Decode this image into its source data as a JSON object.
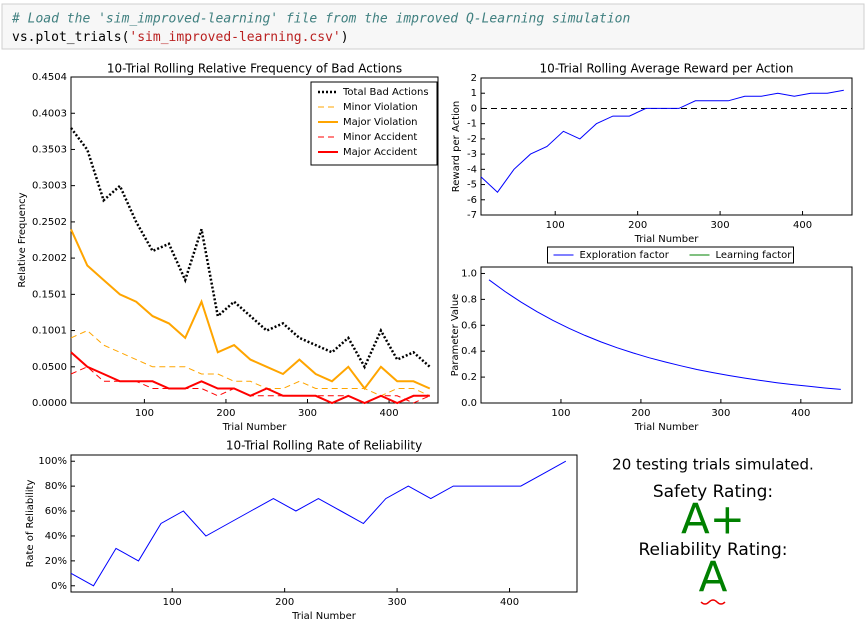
{
  "code": {
    "comment": "# Load the 'sim_improved-learning' file from the improved Q-Learning simulation",
    "tokens": [
      "vs.plot_trials(",
      "'sim_improved-learning.csv'",
      ")"
    ]
  },
  "chart_data": [
    {
      "type": "line",
      "title": "10-Trial Rolling Relative Frequency of Bad Actions",
      "x_label": "Trial Number",
      "y_label": "Relative Frequency",
      "x": [
        10,
        30,
        50,
        70,
        90,
        110,
        130,
        150,
        170,
        190,
        210,
        230,
        250,
        270,
        290,
        310,
        330,
        350,
        370,
        390,
        410,
        430,
        450
      ],
      "series": [
        {
          "name": "Total Bad Actions",
          "color": "#000000",
          "style": "dotted",
          "values": [
            0.38,
            0.35,
            0.28,
            0.3,
            0.25,
            0.21,
            0.22,
            0.17,
            0.24,
            0.12,
            0.14,
            0.12,
            0.1,
            0.11,
            0.09,
            0.08,
            0.07,
            0.09,
            0.05,
            0.1,
            0.06,
            0.07,
            0.05
          ]
        },
        {
          "name": "Minor Violation",
          "color": "#ffa500",
          "style": "dashed",
          "values": [
            0.09,
            0.1,
            0.08,
            0.07,
            0.06,
            0.05,
            0.05,
            0.05,
            0.04,
            0.04,
            0.03,
            0.03,
            0.02,
            0.02,
            0.03,
            0.02,
            0.02,
            0.02,
            0.02,
            0.01,
            0.02,
            0.02,
            0.01
          ]
        },
        {
          "name": "Major Violation",
          "color": "#ffa500",
          "style": "solid",
          "values": [
            0.24,
            0.19,
            0.17,
            0.15,
            0.14,
            0.12,
            0.11,
            0.09,
            0.14,
            0.07,
            0.08,
            0.06,
            0.05,
            0.04,
            0.06,
            0.04,
            0.03,
            0.05,
            0.02,
            0.05,
            0.03,
            0.03,
            0.02
          ]
        },
        {
          "name": "Minor Accident",
          "color": "#ff0000",
          "style": "dashed",
          "values": [
            0.04,
            0.05,
            0.03,
            0.03,
            0.03,
            0.02,
            0.02,
            0.02,
            0.02,
            0.01,
            0.02,
            0.01,
            0.01,
            0.01,
            0.01,
            0.01,
            0.01,
            0.01,
            0.0,
            0.01,
            0.01,
            0.0,
            0.01
          ]
        },
        {
          "name": "Major Accident",
          "color": "#ff0000",
          "style": "solid",
          "values": [
            0.07,
            0.05,
            0.04,
            0.03,
            0.03,
            0.03,
            0.02,
            0.02,
            0.03,
            0.02,
            0.02,
            0.01,
            0.02,
            0.01,
            0.01,
            0.01,
            0.0,
            0.01,
            0.0,
            0.01,
            0.0,
            0.01,
            0.01
          ]
        }
      ],
      "xlim": [
        10,
        460
      ],
      "xticks": [
        100,
        200,
        300,
        400
      ],
      "ylim": [
        0,
        0.4504
      ],
      "yticks": [
        {
          "value": 0,
          "label": "0.0000"
        },
        {
          "value": 0.05,
          "label": "0.0500"
        },
        {
          "value": 0.1001,
          "label": "0.1001"
        },
        {
          "value": 0.1501,
          "label": "0.1501"
        },
        {
          "value": 0.2002,
          "label": "0.2002"
        },
        {
          "value": 0.2502,
          "label": "0.2502"
        },
        {
          "value": 0.3003,
          "label": "0.3003"
        },
        {
          "value": 0.3503,
          "label": "0.3503"
        },
        {
          "value": 0.4003,
          "label": "0.4003"
        },
        {
          "value": 0.4504,
          "label": "0.4504"
        }
      ],
      "legend": "upper right"
    },
    {
      "type": "line",
      "title": "10-Trial Rolling Average Reward per Action",
      "x_label": "Trial Number",
      "y_label": "Reward per Action",
      "x": [
        10,
        30,
        50,
        70,
        90,
        110,
        130,
        150,
        170,
        190,
        210,
        230,
        250,
        270,
        290,
        310,
        330,
        350,
        370,
        390,
        410,
        430,
        450
      ],
      "series": [
        {
          "name": "Reward per Action",
          "color": "#0000ff",
          "style": "solid",
          "values": [
            -4.5,
            -5.5,
            -4,
            -3,
            -2.5,
            -1.5,
            -2,
            -1,
            -0.5,
            -0.5,
            0,
            0,
            0,
            0.5,
            0.5,
            0.5,
            0.8,
            0.8,
            1,
            0.8,
            1,
            1,
            1.2
          ]
        }
      ],
      "reference_line": 0,
      "xlim": [
        10,
        460
      ],
      "xticks": [
        100,
        200,
        300,
        400
      ],
      "ylim": [
        -7,
        2
      ],
      "yticks": [
        -7,
        -6,
        -5,
        -4,
        -3,
        -2,
        -1,
        0,
        1,
        2
      ]
    },
    {
      "type": "line",
      "x_label": "Trial Number",
      "y_label": "Parameter Value",
      "x": [
        10,
        30,
        50,
        70,
        90,
        110,
        130,
        150,
        170,
        190,
        210,
        230,
        250,
        270,
        290,
        310,
        330,
        350,
        370,
        390,
        410,
        430,
        450
      ],
      "series": [
        {
          "name": "Exploration factor",
          "color": "#0000ff",
          "style": "solid",
          "values": [
            0.951,
            0.861,
            0.779,
            0.705,
            0.638,
            0.577,
            0.522,
            0.472,
            0.427,
            0.387,
            0.35,
            0.317,
            0.287,
            0.259,
            0.235,
            0.212,
            0.192,
            0.174,
            0.157,
            0.142,
            0.129,
            0.116,
            0.105
          ]
        },
        {
          "name": "Learning factor",
          "color": "#008000",
          "style": "solid",
          "values": [
            null,
            null,
            null,
            null,
            null,
            null,
            null,
            null,
            null,
            null,
            null,
            null,
            null,
            null,
            null,
            null,
            null,
            null,
            null,
            null,
            null,
            null,
            null
          ]
        }
      ],
      "xlim": [
        0,
        464
      ],
      "xticks": [
        100,
        200,
        300,
        400
      ],
      "ylim": [
        0,
        1.05
      ],
      "yticks": [
        {
          "value": 0,
          "label": "0.0"
        },
        {
          "value": 0.2,
          "label": "0.2"
        },
        {
          "value": 0.4,
          "label": "0.4"
        },
        {
          "value": 0.6,
          "label": "0.6"
        },
        {
          "value": 0.8,
          "label": "0.8"
        },
        {
          "value": 1,
          "label": "1.0"
        }
      ],
      "legend": "upper center outside"
    },
    {
      "type": "line",
      "title": "10-Trial Rolling Rate of Reliability",
      "x_label": "Trial Number",
      "y_label": "Rate of Reliability",
      "x": [
        10,
        30,
        50,
        70,
        90,
        110,
        130,
        150,
        170,
        190,
        210,
        230,
        250,
        270,
        290,
        310,
        330,
        350,
        370,
        390,
        410,
        430,
        450
      ],
      "series": [
        {
          "name": "Rate of Reliability",
          "color": "#0000ff",
          "style": "solid",
          "values": [
            10,
            0,
            30,
            20,
            50,
            60,
            40,
            50,
            60,
            70,
            60,
            70,
            60,
            50,
            70,
            80,
            70,
            80,
            80,
            80,
            80,
            90,
            100
          ]
        }
      ],
      "xlim": [
        10,
        460
      ],
      "xticks": [
        100,
        200,
        300,
        400
      ],
      "ylim": [
        -5,
        105
      ],
      "yticks": [
        {
          "value": 0,
          "label": "0%"
        },
        {
          "value": 20,
          "label": "20%"
        },
        {
          "value": 40,
          "label": "40%"
        },
        {
          "value": 60,
          "label": "60%"
        },
        {
          "value": 80,
          "label": "80%"
        },
        {
          "value": 100,
          "label": "100%"
        }
      ]
    }
  ],
  "summary": {
    "trials": "20 testing trials simulated.",
    "safety_label": "Safety Rating:",
    "safety": "A+",
    "reliability_label": "Reliability Rating:",
    "reliability": "A"
  }
}
